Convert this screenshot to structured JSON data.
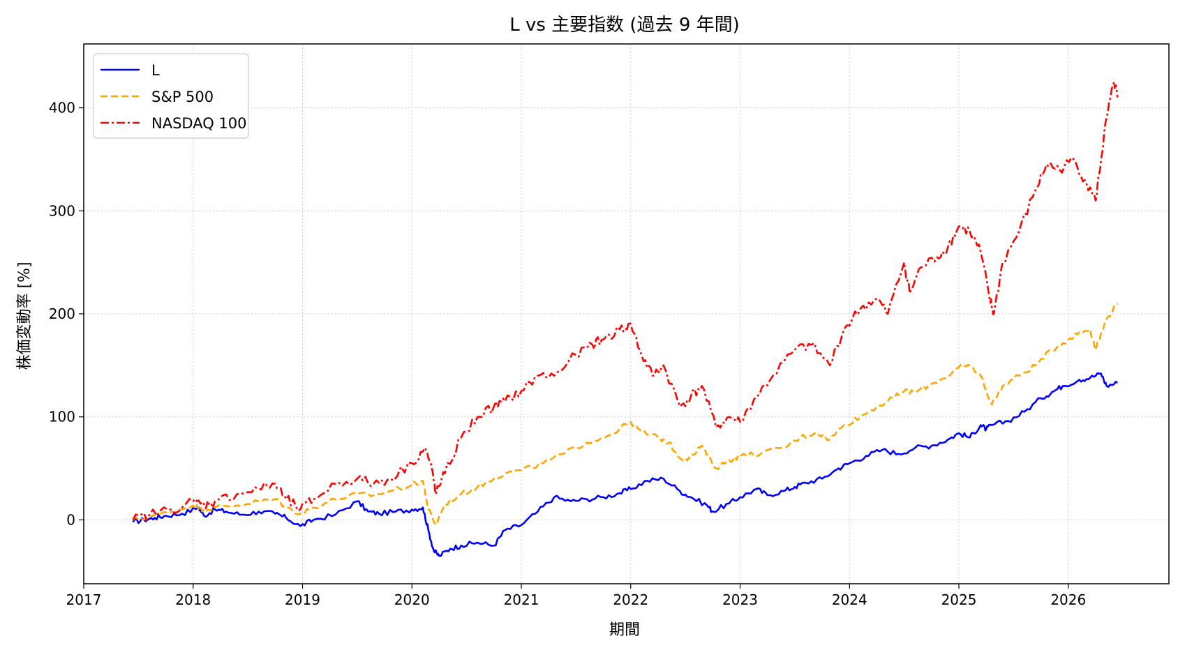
{
  "chart_data": {
    "type": "line",
    "title": "L vs 主要指数 (過去 9 年間)",
    "xlabel": "期間",
    "ylabel": "株価変動率 [%]",
    "xlim": [
      2017.0,
      2026.92
    ],
    "ylim": [
      -62,
      462
    ],
    "x_ticks": [
      2017,
      2018,
      2019,
      2020,
      2021,
      2022,
      2023,
      2024,
      2025,
      2026
    ],
    "x_tick_labels": [
      "2017",
      "2018",
      "2019",
      "2020",
      "2021",
      "2022",
      "2023",
      "2024",
      "2025",
      "2026"
    ],
    "y_ticks": [
      0,
      100,
      200,
      300,
      400
    ],
    "y_tick_labels": [
      "0",
      "100",
      "200",
      "300",
      "400"
    ],
    "grid": true,
    "legend_position": "top-left",
    "series": [
      {
        "name": "L",
        "color": "#0000ff",
        "dash": "solid",
        "x": [
          2017.45,
          2017.55,
          2017.65,
          2017.75,
          2017.9,
          2018.05,
          2018.1,
          2018.2,
          2018.3,
          2018.45,
          2018.6,
          2018.75,
          2018.85,
          2018.98,
          2019.1,
          2019.3,
          2019.5,
          2019.6,
          2019.7,
          2019.85,
          2020.0,
          2020.1,
          2020.15,
          2020.2,
          2020.25,
          2020.35,
          2020.45,
          2020.6,
          2020.75,
          2020.85,
          2021.0,
          2021.15,
          2021.3,
          2021.45,
          2021.6,
          2021.75,
          2021.9,
          2022.0,
          2022.15,
          2022.3,
          2022.45,
          2022.55,
          2022.7,
          2022.75,
          2022.9,
          2023.0,
          2023.15,
          2023.25,
          2023.4,
          2023.5,
          2023.6,
          2023.75,
          2023.9,
          2024.0,
          2024.15,
          2024.3,
          2024.45,
          2024.6,
          2024.75,
          2024.9,
          2025.0,
          2025.1,
          2025.2,
          2025.25,
          2025.3,
          2025.45,
          2025.6,
          2025.75,
          2025.85,
          2025.95,
          2026.1,
          2026.2,
          2026.3,
          2026.35,
          2026.45
        ],
        "values": [
          -2,
          0,
          2,
          4,
          6,
          12,
          4,
          10,
          8,
          5,
          8,
          6,
          2,
          -6,
          0,
          5,
          18,
          8,
          6,
          8,
          10,
          12,
          -10,
          -30,
          -35,
          -28,
          -25,
          -22,
          -25,
          -10,
          -5,
          8,
          22,
          18,
          20,
          22,
          26,
          30,
          38,
          40,
          28,
          22,
          14,
          8,
          16,
          22,
          30,
          24,
          28,
          32,
          36,
          40,
          50,
          55,
          62,
          68,
          64,
          70,
          72,
          78,
          84,
          80,
          92,
          88,
          92,
          96,
          105,
          118,
          124,
          130,
          136,
          138,
          142,
          130,
          133
        ]
      },
      {
        "name": "S&P 500",
        "color": "#ffa500",
        "dash": "dashed",
        "x": [
          2017.45,
          2017.6,
          2017.8,
          2018.0,
          2018.1,
          2018.2,
          2018.4,
          2018.6,
          2018.75,
          2018.85,
          2018.98,
          2019.1,
          2019.3,
          2019.5,
          2019.65,
          2019.8,
          2020.0,
          2020.1,
          2020.15,
          2020.22,
          2020.3,
          2020.45,
          2020.6,
          2020.75,
          2020.85,
          2021.0,
          2021.2,
          2021.4,
          2021.6,
          2021.8,
          2022.0,
          2022.1,
          2022.25,
          2022.35,
          2022.45,
          2022.55,
          2022.65,
          2022.78,
          2022.9,
          2023.0,
          2023.2,
          2023.4,
          2023.55,
          2023.7,
          2023.82,
          2023.95,
          2024.1,
          2024.25,
          2024.4,
          2024.5,
          2024.6,
          2024.75,
          2024.9,
          2025.0,
          2025.1,
          2025.2,
          2025.3,
          2025.4,
          2025.55,
          2025.7,
          2025.85,
          2026.0,
          2026.1,
          2026.2,
          2026.25,
          2026.35,
          2026.45
        ],
        "values": [
          0,
          3,
          8,
          14,
          10,
          12,
          14,
          18,
          20,
          12,
          6,
          12,
          20,
          25,
          24,
          28,
          34,
          38,
          10,
          -5,
          15,
          25,
          32,
          40,
          45,
          48,
          55,
          65,
          75,
          82,
          95,
          85,
          80,
          75,
          60,
          60,
          72,
          50,
          58,
          62,
          65,
          70,
          80,
          85,
          78,
          92,
          100,
          110,
          118,
          125,
          124,
          132,
          140,
          148,
          150,
          140,
          112,
          130,
          140,
          150,
          165,
          175,
          182,
          185,
          165,
          195,
          210
        ]
      },
      {
        "name": "NASDAQ 100",
        "color": "#ff0000",
        "dash": "dashdot",
        "x": [
          2017.45,
          2017.6,
          2017.8,
          2018.0,
          2018.1,
          2018.2,
          2018.4,
          2018.6,
          2018.75,
          2018.85,
          2018.98,
          2019.1,
          2019.3,
          2019.5,
          2019.65,
          2019.8,
          2020.0,
          2020.12,
          2020.18,
          2020.22,
          2020.3,
          2020.45,
          2020.6,
          2020.75,
          2020.85,
          2021.0,
          2021.15,
          2021.3,
          2021.5,
          2021.65,
          2021.75,
          2021.9,
          2022.0,
          2022.1,
          2022.2,
          2022.3,
          2022.45,
          2022.55,
          2022.65,
          2022.78,
          2022.9,
          2023.0,
          2023.15,
          2023.3,
          2023.5,
          2023.65,
          2023.82,
          2023.95,
          2024.1,
          2024.25,
          2024.35,
          2024.5,
          2024.55,
          2024.65,
          2024.8,
          2024.9,
          2025.0,
          2025.1,
          2025.2,
          2025.28,
          2025.32,
          2025.4,
          2025.55,
          2025.7,
          2025.8,
          2025.92,
          2026.05,
          2026.15,
          2026.25,
          2026.3,
          2026.35,
          2026.42,
          2026.45
        ],
        "values": [
          0,
          5,
          10,
          18,
          15,
          18,
          25,
          30,
          35,
          20,
          10,
          20,
          35,
          40,
          35,
          40,
          55,
          70,
          50,
          25,
          45,
          80,
          100,
          110,
          115,
          125,
          140,
          140,
          160,
          170,
          175,
          185,
          190,
          160,
          140,
          150,
          110,
          120,
          130,
          90,
          100,
          95,
          120,
          140,
          165,
          170,
          150,
          185,
          205,
          215,
          200,
          250,
          220,
          245,
          255,
          265,
          285,
          280,
          260,
          215,
          200,
          250,
          280,
          320,
          345,
          340,
          350,
          330,
          310,
          350,
          390,
          425,
          410
        ]
      }
    ]
  }
}
